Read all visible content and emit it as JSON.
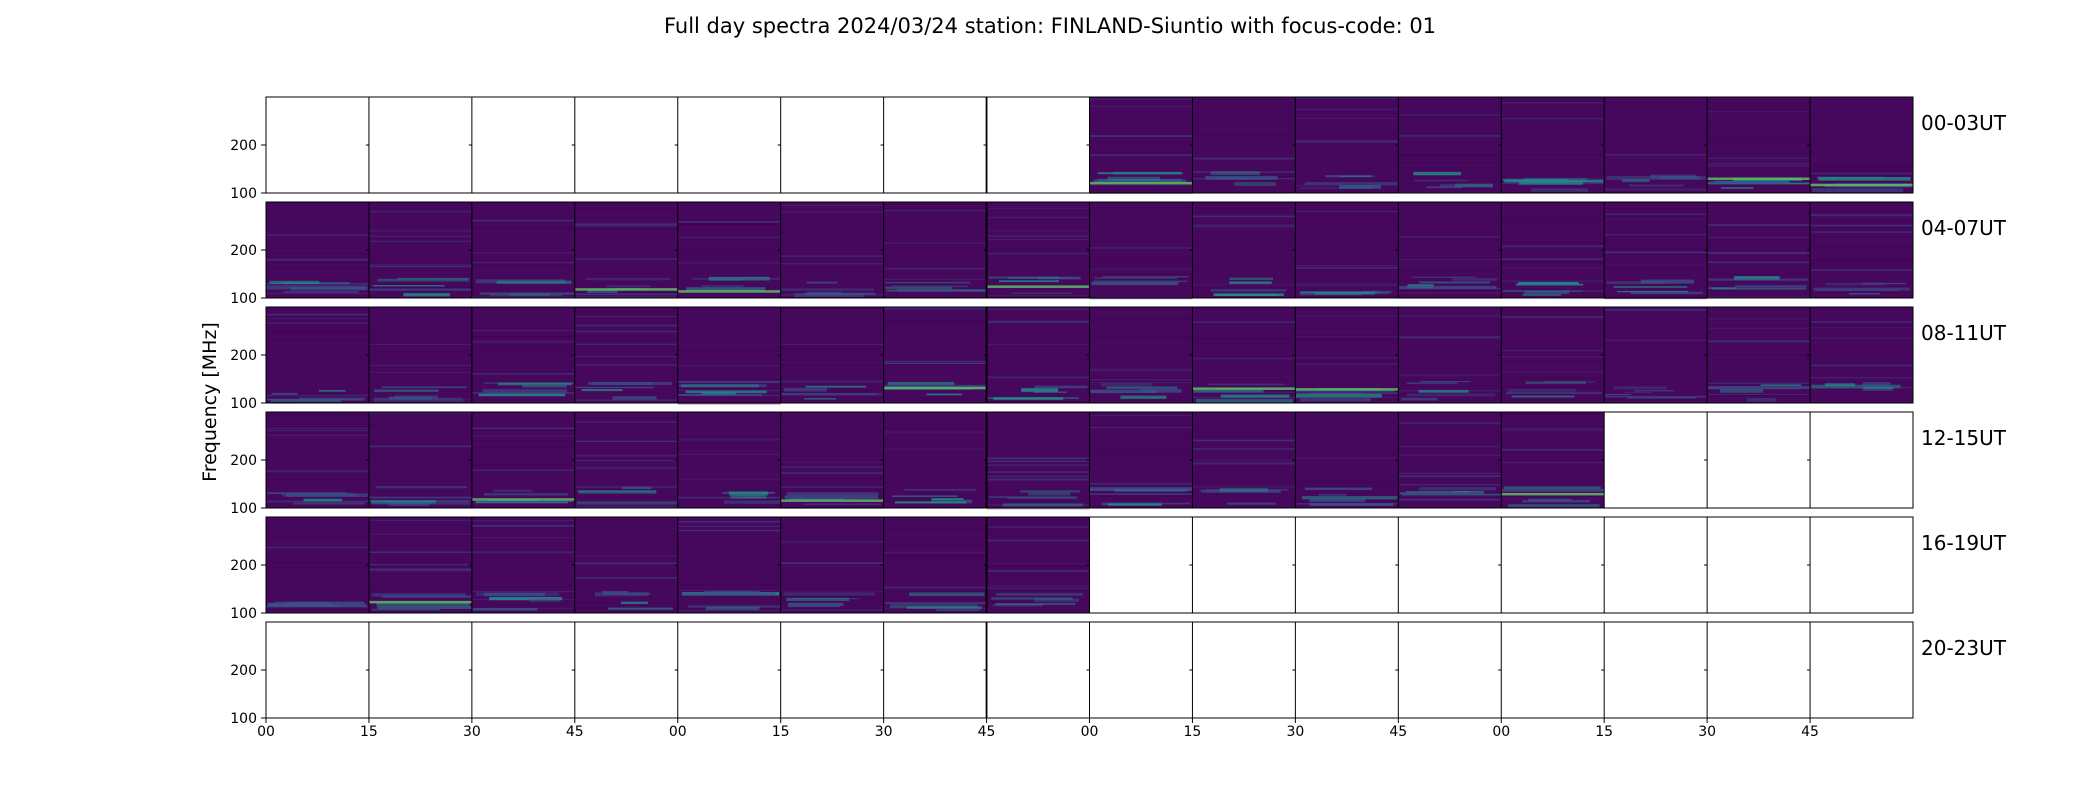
{
  "chart_data": {
    "type": "heatmap",
    "title": "Full day spectra 2024/03/24 station: FINLAND-Siuntio with focus-code: 01",
    "ylabel": "Frequency [MHz]",
    "xlabel": "",
    "ylim": [
      100,
      300
    ],
    "y_ticks": [
      "100",
      "200"
    ],
    "x_ticks": [
      "00",
      "15",
      "30",
      "45",
      "00",
      "15",
      "30",
      "45",
      "00",
      "15",
      "30",
      "45",
      "00",
      "15",
      "30",
      "45"
    ],
    "colormap": "viridis",
    "panels": [
      {
        "label": "00-03UT",
        "has_data": [
          false,
          false,
          false,
          false,
          false,
          false,
          false,
          false,
          true,
          true,
          true,
          true,
          true,
          true,
          true,
          true
        ]
      },
      {
        "label": "04-07UT",
        "has_data": [
          true,
          true,
          true,
          true,
          true,
          true,
          true,
          true,
          true,
          true,
          true,
          true,
          true,
          true,
          true,
          true
        ]
      },
      {
        "label": "08-11UT",
        "has_data": [
          true,
          true,
          true,
          true,
          true,
          true,
          true,
          true,
          true,
          true,
          true,
          true,
          true,
          true,
          true,
          true
        ]
      },
      {
        "label": "12-15UT",
        "has_data": [
          true,
          true,
          true,
          true,
          true,
          true,
          true,
          true,
          true,
          true,
          true,
          true,
          true,
          false,
          false,
          false
        ]
      },
      {
        "label": "16-19UT",
        "has_data": [
          true,
          true,
          true,
          true,
          true,
          true,
          true,
          true,
          false,
          false,
          false,
          false,
          false,
          false,
          false,
          false
        ]
      },
      {
        "label": "20-23UT",
        "has_data": [
          false,
          false,
          false,
          false,
          false,
          false,
          false,
          false,
          false,
          false,
          false,
          false,
          false,
          false,
          false,
          false
        ]
      }
    ]
  },
  "colors": {
    "background_low": "#440154",
    "background_base": "#46085c",
    "mid": "#3b528b",
    "teal": "#21918c",
    "green": "#5ec962",
    "yellow": "#fde725"
  }
}
